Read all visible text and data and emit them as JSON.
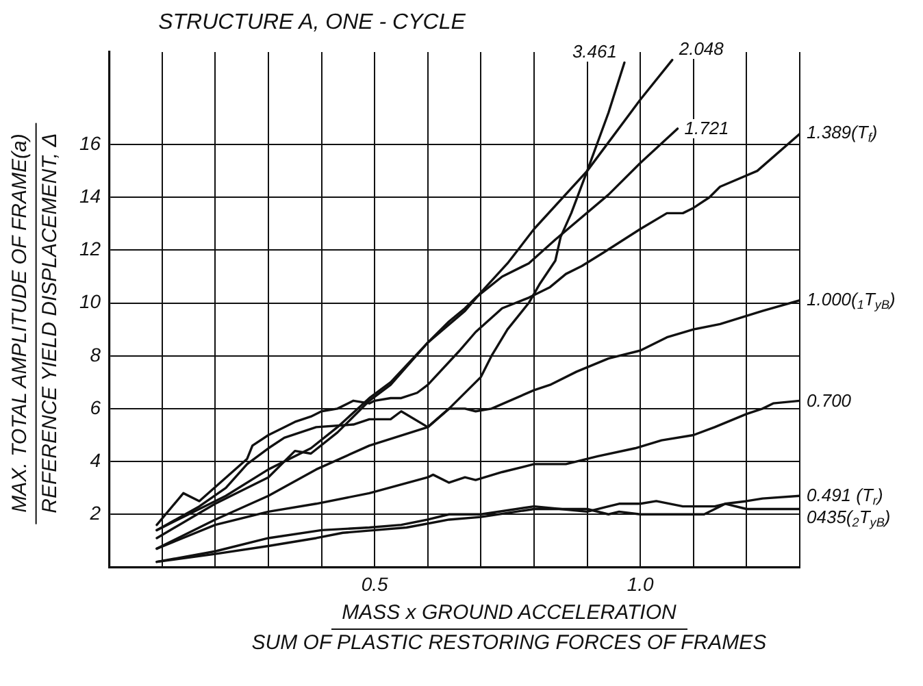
{
  "chart_data": {
    "type": "line",
    "title": "STRUCTURE A, ONE - CYCLE",
    "xlabel": "MASS x GROUND ACCELERATION\nSUM OF PLASTIC RESTORING FORCES OF FRAMES",
    "ylabel": "MAX. TOTAL AMPLITUDE OF FRAME(a)\nREFERENCE YIELD DISPLACEMENT, Δ",
    "xlim": [
      0,
      1.3
    ],
    "ylim": [
      0,
      19.5
    ],
    "xticks": [
      {
        "value": 0,
        "label": null
      },
      {
        "value": 0.1,
        "label": null
      },
      {
        "value": 0.2,
        "label": null
      },
      {
        "value": 0.3,
        "label": null
      },
      {
        "value": 0.4,
        "label": null
      },
      0.5,
      {
        "value": 0.6,
        "label": null
      },
      {
        "value": 0.7,
        "label": null
      },
      {
        "value": 0.8,
        "label": null
      },
      {
        "value": 0.9,
        "label": null
      },
      {
        "value": 1,
        "label": "1.0"
      },
      {
        "value": 1.1,
        "label": null
      },
      {
        "value": 1.2,
        "label": null
      },
      {
        "value": 1.3,
        "label": null
      }
    ],
    "yticks": [
      {
        "value": 0,
        "label": null
      },
      2,
      4,
      6,
      8,
      10,
      12,
      14,
      16
    ],
    "grid": true,
    "marker": "none",
    "line_style": "solid",
    "series": [
      {
        "name": "3.461",
        "color": "#111111",
        "x": [
          0.09,
          0.17,
          0.22,
          0.26,
          0.3,
          0.33,
          0.39,
          0.46,
          0.49,
          0.53,
          0.55,
          0.6,
          0.64,
          0.7,
          0.72,
          0.75,
          0.79,
          0.81,
          0.84,
          0.85,
          0.87,
          0.9,
          0.94,
          0.97
        ],
        "values": [
          1.4,
          2.3,
          3.0,
          3.9,
          4.5,
          4.9,
          5.3,
          5.4,
          5.6,
          5.6,
          5.9,
          5.3,
          6.0,
          7.2,
          8.0,
          9.0,
          10.0,
          10.7,
          11.6,
          12.5,
          13.4,
          15.0,
          17.2,
          19.1
        ]
      },
      {
        "name": "2.048",
        "color": "#111111",
        "x": [
          0.09,
          0.17,
          0.22,
          0.3,
          0.38,
          0.43,
          0.49,
          0.53,
          0.6,
          0.67,
          0.7,
          0.75,
          0.8,
          0.9,
          1.0,
          1.06
        ],
        "values": [
          1.4,
          2.2,
          2.7,
          3.7,
          4.5,
          5.3,
          6.4,
          7.0,
          8.5,
          9.7,
          10.4,
          11.5,
          12.8,
          15.0,
          17.7,
          19.2
        ]
      },
      {
        "name": "1.721",
        "color": "#111111",
        "x": [
          0.09,
          0.2,
          0.3,
          0.35,
          0.38,
          0.43,
          0.49,
          0.53,
          0.6,
          0.64,
          0.67,
          0.69,
          0.74,
          0.79,
          0.84,
          0.94,
          1.0,
          1.07
        ],
        "values": [
          1.1,
          2.4,
          3.4,
          4.4,
          4.3,
          5.1,
          6.3,
          6.9,
          8.5,
          9.3,
          9.8,
          10.2,
          11.0,
          11.5,
          12.4,
          14.1,
          15.3,
          16.6
        ]
      },
      {
        "name": "1.389(T$_{f}$)",
        "color": "#111111",
        "x": [
          0.09,
          0.14,
          0.17,
          0.26,
          0.27,
          0.3,
          0.33,
          0.35,
          0.38,
          0.4,
          0.43,
          0.46,
          0.49,
          0.5,
          0.53,
          0.55,
          0.58,
          0.6,
          0.66,
          0.69,
          0.74,
          0.79,
          0.83,
          0.86,
          0.89,
          0.93,
          1.0,
          1.05,
          1.08,
          1.1,
          1.13,
          1.15,
          1.22,
          1.3
        ],
        "values": [
          1.6,
          2.8,
          2.5,
          4.1,
          4.6,
          5.0,
          5.3,
          5.5,
          5.7,
          5.9,
          6.0,
          6.3,
          6.2,
          6.3,
          6.4,
          6.4,
          6.6,
          6.9,
          8.2,
          8.9,
          9.8,
          10.2,
          10.6,
          11.1,
          11.4,
          11.9,
          12.8,
          13.4,
          13.4,
          13.6,
          14.0,
          14.4,
          15.0,
          16.4
        ]
      },
      {
        "name": "1.000($_{1}$T$_{yB}$)",
        "color": "#111111",
        "x": [
          0.09,
          0.2,
          0.3,
          0.39,
          0.49,
          0.6,
          0.64,
          0.67,
          0.69,
          0.72,
          0.8,
          0.83,
          0.88,
          0.94,
          1.0,
          1.05,
          1.1,
          1.15,
          1.23,
          1.3
        ],
        "values": [
          0.7,
          1.8,
          2.7,
          3.7,
          4.6,
          5.3,
          6.0,
          6.0,
          5.9,
          6.0,
          6.7,
          6.9,
          7.4,
          7.9,
          8.2,
          8.7,
          9.0,
          9.2,
          9.7,
          10.1
        ]
      },
      {
        "name": "0.700",
        "color": "#111111",
        "x": [
          0.09,
          0.2,
          0.3,
          0.39,
          0.49,
          0.6,
          0.61,
          0.64,
          0.67,
          0.69,
          0.74,
          0.8,
          0.86,
          0.92,
          0.99,
          1.04,
          1.1,
          1.14,
          1.2,
          1.23,
          1.25,
          1.3
        ],
        "values": [
          0.7,
          1.6,
          2.1,
          2.4,
          2.8,
          3.4,
          3.5,
          3.2,
          3.4,
          3.3,
          3.6,
          3.9,
          3.9,
          4.2,
          4.5,
          4.8,
          5.0,
          5.3,
          5.8,
          6.0,
          6.2,
          6.3
        ]
      },
      {
        "name": "0.491 (T$_{r}$)",
        "color": "#111111",
        "x": [
          0.09,
          0.2,
          0.3,
          0.4,
          0.49,
          0.55,
          0.6,
          0.64,
          0.7,
          0.8,
          0.85,
          0.9,
          0.94,
          0.96,
          1.0,
          1.03,
          1.08,
          1.14,
          1.16,
          1.2,
          1.23,
          1.3
        ],
        "values": [
          0.2,
          0.6,
          1.1,
          1.4,
          1.5,
          1.6,
          1.8,
          2.0,
          2.0,
          2.3,
          2.2,
          2.1,
          2.3,
          2.4,
          2.4,
          2.5,
          2.3,
          2.3,
          2.4,
          2.5,
          2.6,
          2.7
        ]
      },
      {
        "name": "0435($_{2}$T$_{yB}$)",
        "color": "#111111",
        "x": [
          0.09,
          0.2,
          0.3,
          0.39,
          0.44,
          0.5,
          0.56,
          0.64,
          0.7,
          0.8,
          0.85,
          0.9,
          0.94,
          0.96,
          1.0,
          1.12,
          1.15,
          1.16,
          1.2,
          1.3
        ],
        "values": [
          0.2,
          0.5,
          0.8,
          1.1,
          1.3,
          1.4,
          1.5,
          1.8,
          1.9,
          2.2,
          2.2,
          2.2,
          2.0,
          2.1,
          2.0,
          2.0,
          2.3,
          2.4,
          2.2,
          2.2
        ]
      }
    ]
  }
}
